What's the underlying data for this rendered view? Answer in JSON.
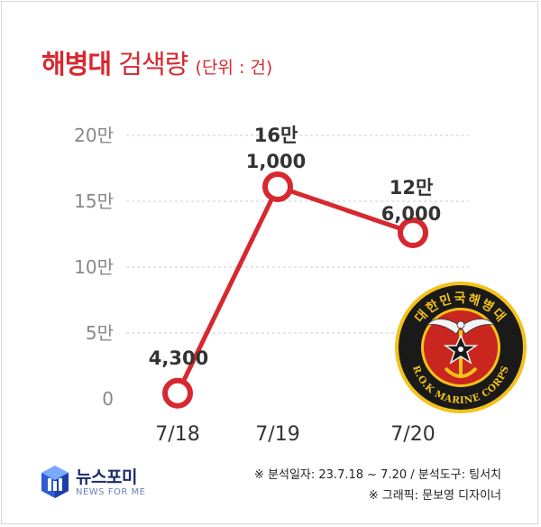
{
  "title": {
    "bold": "해병대",
    "normal": "검색량",
    "unit": "(단위 : 건)"
  },
  "colors": {
    "accent": "#d7282f",
    "axis_text": "#888888",
    "label_text": "#333333",
    "grid": "#cccccc"
  },
  "chart_data": {
    "type": "line",
    "categories": [
      "7/18",
      "7/19",
      "7/20"
    ],
    "values": [
      4300,
      161000,
      126000
    ],
    "value_labels": [
      [
        "4,300"
      ],
      [
        "16만",
        "1,000"
      ],
      [
        "12만",
        "6,000"
      ]
    ],
    "ylim": [
      0,
      200000
    ],
    "yticks": [
      {
        "value": 0,
        "label": "0"
      },
      {
        "value": 50000,
        "label": "5만"
      },
      {
        "value": 100000,
        "label": "10만"
      },
      {
        "value": 150000,
        "label": "15만"
      },
      {
        "value": 200000,
        "label": "20만"
      }
    ],
    "grid": true
  },
  "emblem": {
    "top_text": "대한민국해병대",
    "bottom_text": "R.O.K MARINE CORPS"
  },
  "footer": {
    "line1": "※ 분석일자: 23.7.18 ~ 7.20  / 분석도구: 팅서치",
    "line2": "※ 그래픽: 문보영 디자이너"
  },
  "logo": {
    "name": "뉴스포미",
    "sub": "NEWS FOR ME"
  }
}
